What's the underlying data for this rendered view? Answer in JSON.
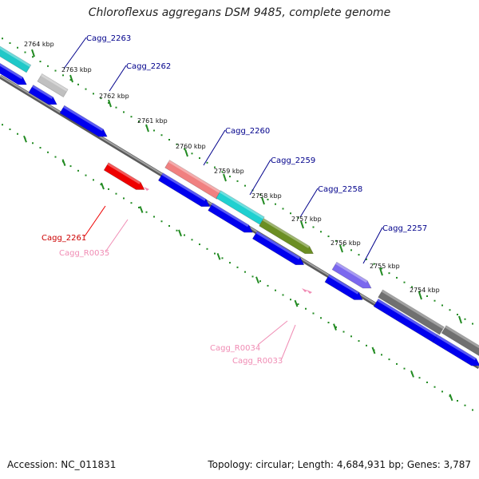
{
  "title": "Chloroflexus aggregans DSM 9485, complete genome",
  "footer": {
    "accession": "Accession: NC_011831",
    "summary": "Topology: circular; Length: 4,684,931 bp; Genes: 3,787"
  },
  "colors": {
    "backbone": "#808080",
    "tick": "#228b22",
    "cds": "#0000ee",
    "gene_label": "#00008b",
    "red_gene": "#ee0000",
    "rna": "#f08cb4"
  },
  "kbp_labels": [
    "2764 kbp",
    "2763 kbp",
    "2762 kbp",
    "2761 kbp",
    "2760 kbp",
    "2759 kbp",
    "2758 kbp",
    "2757 kbp",
    "2756 kbp",
    "2755 kbp",
    "2754 kbp"
  ],
  "gene_labels": [
    {
      "text": "Cagg_2263",
      "color": "#00008b"
    },
    {
      "text": "Cagg_2262",
      "color": "#00008b"
    },
    {
      "text": "Cagg_2260",
      "color": "#00008b"
    },
    {
      "text": "Cagg_2259",
      "color": "#00008b"
    },
    {
      "text": "Cagg_2258",
      "color": "#00008b"
    },
    {
      "text": "Cagg_2257",
      "color": "#00008b"
    },
    {
      "text": "Cagg_2261",
      "color": "#cc0000"
    },
    {
      "text": "Cagg_R0035",
      "color": "#f08cb4"
    },
    {
      "text": "Cagg_R0034",
      "color": "#f08cb4"
    },
    {
      "text": "Cagg_R0033",
      "color": "#f08cb4"
    }
  ]
}
